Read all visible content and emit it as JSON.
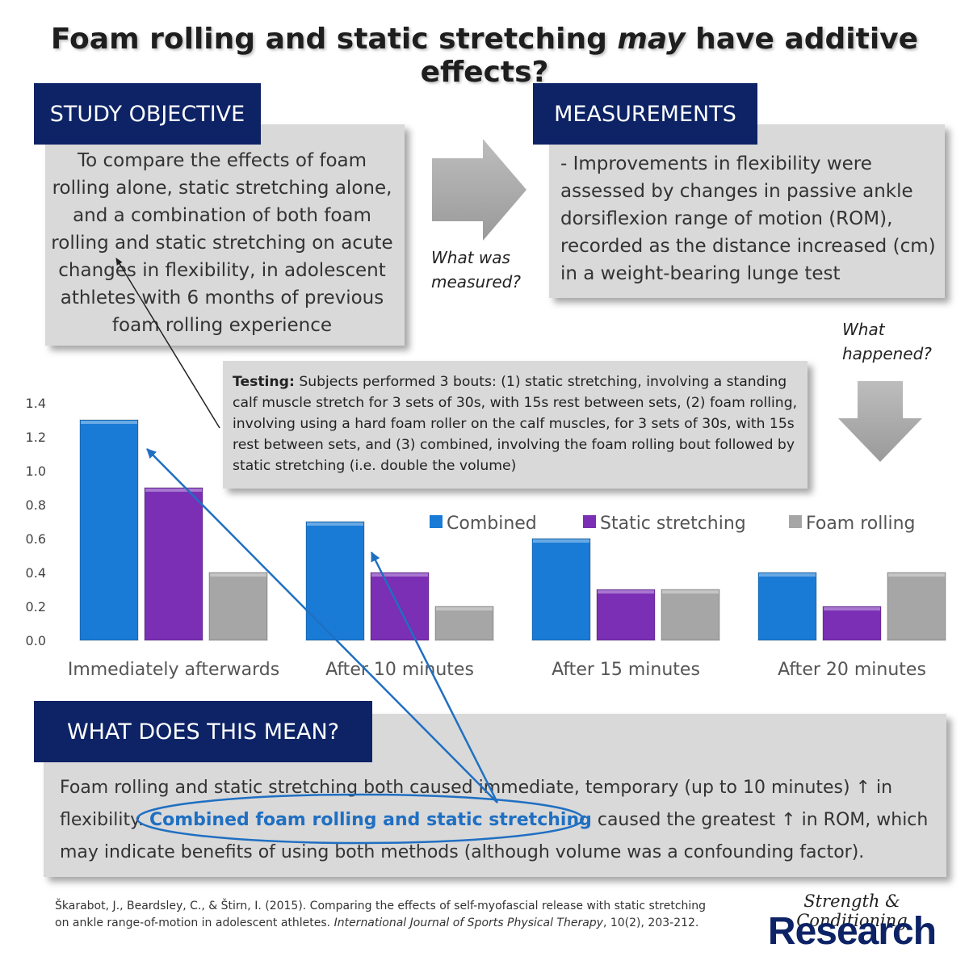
{
  "title": {
    "part1": "Foam rolling and static stretching ",
    "emphasis": "may",
    "part2": " have additive effects?"
  },
  "objective": {
    "heading": "STUDY OBJECTIVE",
    "text": "To compare the effects of foam rolling alone, static stretching alone, and a combination of both foam rolling and static stretching on acute changes in flexibility, in adolescent athletes with 6 months of previous foam rolling experience"
  },
  "measurements": {
    "heading": "MEASUREMENTS",
    "text": "- Improvements in flexibility were assessed by changes in passive ankle dorsiflexion range of motion (ROM), recorded as the distance increased (cm) in a weight-bearing lunge test"
  },
  "notes": {
    "what_measured_1": "What was",
    "what_measured_2": "measured?",
    "what_happened_1": "What",
    "what_happened_2": "happened?"
  },
  "testing": {
    "label": "Testing:",
    "text": " Subjects performed 3 bouts: (1) static stretching, involving a standing calf muscle stretch for 3 sets of 30s, with 15s rest between sets, (2) foam rolling, involving using a hard foam roller on the calf muscles, for 3 sets of 30s, with 15s rest between sets, and (3) combined, involving the foam rolling bout followed by static stretching (i.e. double the volume)"
  },
  "chart_data": {
    "type": "bar",
    "categories": [
      "Immediately afterwards",
      "After 10 minutes",
      "After 15 minutes",
      "After 20 minutes"
    ],
    "series": [
      {
        "name": "Combined",
        "values": [
          1.3,
          0.7,
          0.6,
          0.4
        ],
        "color": "#1a7bd6"
      },
      {
        "name": "Static stretching",
        "values": [
          0.9,
          0.4,
          0.3,
          0.2
        ],
        "color": "#7a2fb5"
      },
      {
        "name": "Foam rolling",
        "values": [
          0.4,
          0.2,
          0.3,
          0.4
        ],
        "color": "#a6a6a6"
      }
    ],
    "ylim": [
      0,
      1.4
    ],
    "yticks": [
      "0.0",
      "0.2",
      "0.4",
      "0.6",
      "0.8",
      "1.0",
      "1.2",
      "1.4"
    ],
    "title": "",
    "xlabel": "",
    "ylabel": "",
    "legend": "top-right"
  },
  "meaning": {
    "heading": "WHAT DOES THIS MEAN?",
    "line1": "Foam rolling and static stretching both caused immediate, temporary (up to 10 minutes) ↑ in",
    "line2_pre": "flexibility. ",
    "highlight": "Combined foam rolling and static stretching",
    "line2_post": " caused the greatest ↑ in ROM, which",
    "line3": "may indicate benefits of using both methods (although volume was a confounding factor)."
  },
  "reference": {
    "line1": "Škarabot, J., Beardsley, C., & Štirn, I. (2015). Comparing the effects of self-myofascial release with static stretching",
    "line2_pre": "on ankle range-of-motion in adolescent athletes. ",
    "journal": "International Journal of Sports Physical Therapy",
    "line2_post": ", 10(2), 203-212."
  },
  "logo": {
    "script": "Strength & Conditioning",
    "big": "Research"
  },
  "colors": {
    "navy": "#0d2366",
    "box_gray": "#d9d9d9",
    "arrow_blue": "#1f6fc2",
    "arrow_gray": "#a6a6a6"
  }
}
